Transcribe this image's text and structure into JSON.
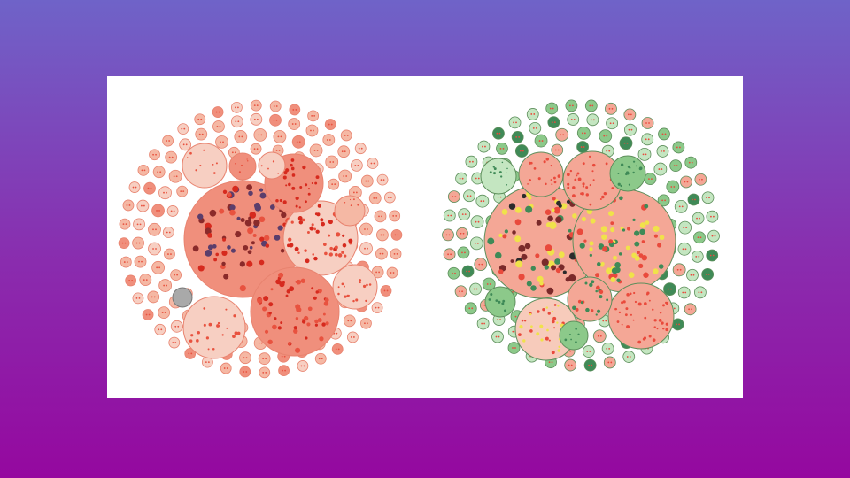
{
  "slide": {
    "background_top": "#6f63c8",
    "background_bottom": "#95089f",
    "panel_color": "#ffffff"
  },
  "diagrams": [
    {
      "type": "circle-packing",
      "palette": [
        "#f5b8a4",
        "#f08f7c",
        "#f7cfc2",
        "#e8523f",
        "#d62a1e"
      ],
      "highlight_color": "#a9a9a9"
    },
    {
      "type": "circle-packing",
      "palette": [
        "#c4e6c1",
        "#8cc98a",
        "#3f8a57",
        "#f4a796",
        "#e94a3c"
      ],
      "highlight_color": "#f0e24a"
    }
  ]
}
